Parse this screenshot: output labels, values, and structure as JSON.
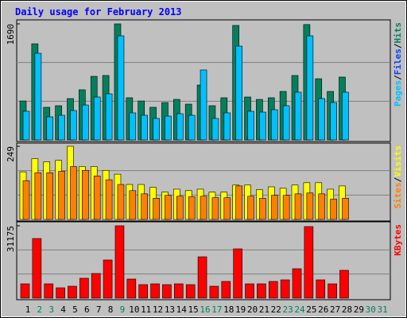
{
  "chart_data": {
    "type": "bar",
    "title": "Daily usage for February 2013",
    "categories": [
      "1",
      "2",
      "3",
      "4",
      "5",
      "6",
      "7",
      "8",
      "9",
      "10",
      "11",
      "12",
      "13",
      "14",
      "15",
      "16",
      "17",
      "18",
      "19",
      "20",
      "21",
      "22",
      "23",
      "24",
      "25",
      "26",
      "27",
      "28",
      "29",
      "30",
      "31"
    ],
    "category_colors": [
      "#000000",
      "#00805c",
      "#00805c",
      "#000000",
      "#000000",
      "#000000",
      "#000000",
      "#000000",
      "#00805c",
      "#000000",
      "#000000",
      "#000000",
      "#000000",
      "#000000",
      "#000000",
      "#00805c",
      "#00805c",
      "#000000",
      "#000000",
      "#000000",
      "#000000",
      "#000000",
      "#00805c",
      "#00805c",
      "#000000",
      "#000000",
      "#000000",
      "#000000",
      "#000000",
      "#00805c",
      "#00805c"
    ],
    "panels": [
      {
        "ylim": [
          0,
          1690
        ],
        "yticks": [
          1690
        ],
        "legend": [
          {
            "text": "Pages",
            "color": "#00c0ff"
          },
          {
            "text": "/",
            "color": "#000000"
          },
          {
            "text": "Files",
            "color": "#0040ff"
          },
          {
            "text": "/",
            "color": "#000000"
          },
          {
            "text": "Hits",
            "color": "#00805c"
          }
        ],
        "series": [
          {
            "color": "#00805c",
            "values": [
              567,
              1400,
              475,
              498,
              602,
              730,
              926,
              938,
              1690,
              614,
              567,
              475,
              544,
              590,
              521,
              799,
              498,
              614,
              1667,
              625,
              590,
              614,
              706,
              938,
              1680,
              891,
              706,
              915,
              null,
              null,
              null
            ]
          },
          {
            "color": "#00c0ff",
            "values": [
              417,
              1262,
              336,
              359,
              428,
              509,
              625,
              671,
              1516,
              394,
              359,
              313,
              347,
              382,
              359,
              1019,
              313,
              394,
              1366,
              417,
              405,
              440,
              498,
              695,
              1516,
              602,
              544,
              695,
              null,
              null,
              null
            ]
          }
        ]
      },
      {
        "ylim": [
          0,
          249
        ],
        "yticks": [
          249
        ],
        "legend": [
          {
            "text": "Sites",
            "color": "#ff8000"
          },
          {
            "text": "/",
            "color": "#000000"
          },
          {
            "text": "Visits",
            "color": "#ffff00"
          }
        ],
        "series": [
          {
            "color": "#ffff00",
            "values": [
              162,
              207,
              196,
              201,
              249,
              180,
              180,
              167,
              154,
              119,
              119,
              109,
              93,
              103,
              98,
              103,
              93,
              93,
              117,
              117,
              101,
              111,
              106,
              117,
              125,
              125,
              103,
              114,
              null,
              null,
              null
            ]
          },
          {
            "color": "#ff8000",
            "values": [
              132,
              159,
              159,
              164,
              180,
              167,
              148,
              135,
              119,
              98,
              87,
              72,
              82,
              79,
              77,
              79,
              74,
              74,
              114,
              79,
              72,
              82,
              82,
              87,
              90,
              87,
              69,
              72,
              null,
              null,
              null
            ]
          }
        ]
      },
      {
        "ylim": [
          0,
          31175
        ],
        "yticks": [
          31175
        ],
        "legend": [
          {
            "text": "KBytes",
            "color": "#ff0000"
          }
        ],
        "series": [
          {
            "color": "#ff0000",
            "values": [
              6166,
              25694,
              6166,
              4454,
              5139,
              8564,
              10620,
              16443,
              31175,
              8222,
              5824,
              6166,
              5824,
              6166,
              5824,
              17813,
              5139,
              7194,
              21239,
              6166,
              6166,
              7194,
              7879,
              12675,
              30832,
              7879,
              6166,
              11990,
              null,
              null,
              null
            ]
          }
        ]
      }
    ]
  }
}
